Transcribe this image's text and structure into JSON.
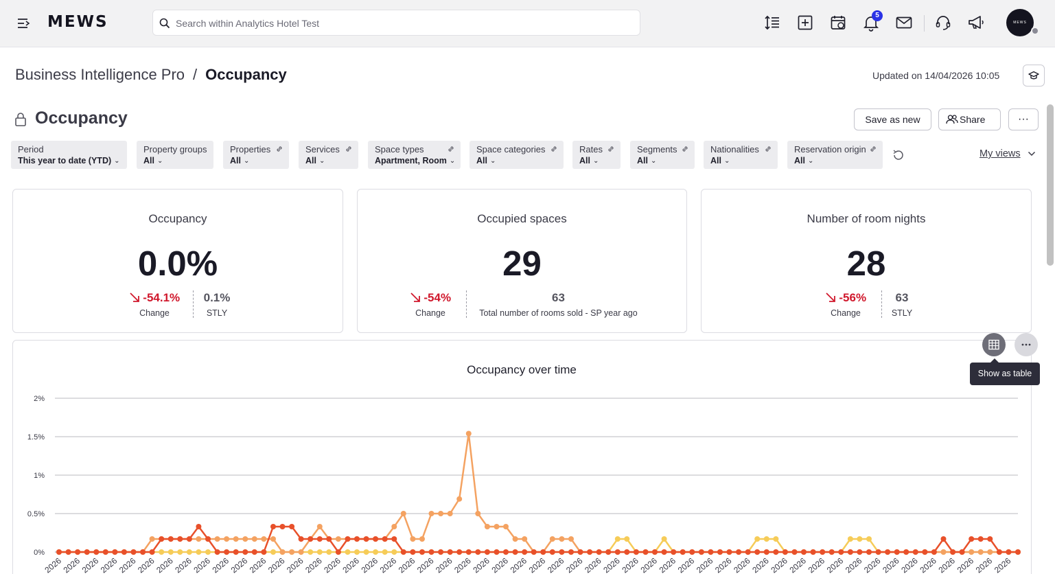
{
  "topbar": {
    "logo": "MEWS",
    "search_placeholder": "Search within Analytics Hotel Test",
    "notification_count": "5",
    "icons": [
      "menu-collapse-icon",
      "search-icon",
      "line-height-icon",
      "add-square-icon",
      "calendar-edit-icon",
      "bell-icon",
      "mail-icon",
      "headset-icon",
      "megaphone-icon"
    ],
    "avatar_text": "MEWS"
  },
  "header": {
    "breadcrumb_parent": "Business Intelligence Pro",
    "breadcrumb_sep": "/",
    "breadcrumb_current": "Occupancy",
    "updated": "Updated on 14/04/2026 10:05"
  },
  "report": {
    "title": "Occupancy",
    "save_label": "Save as new",
    "share_label": "Share",
    "more_label": "···"
  },
  "filters": [
    {
      "label": "Period",
      "value": "This year to date (YTD)",
      "linked": false
    },
    {
      "label": "Property groups",
      "value": "All",
      "linked": false
    },
    {
      "label": "Properties",
      "value": "All",
      "linked": true
    },
    {
      "label": "Services",
      "value": "All",
      "linked": true
    },
    {
      "label": "Space types",
      "value": "Apartment, Room",
      "linked": true
    },
    {
      "label": "Space categories",
      "value": "All",
      "linked": true
    },
    {
      "label": "Rates",
      "value": "All",
      "linked": true
    },
    {
      "label": "Segments",
      "value": "All",
      "linked": true
    },
    {
      "label": "Nationalities",
      "value": "All",
      "linked": true
    },
    {
      "label": "Reservation origin",
      "value": "All",
      "linked": true
    }
  ],
  "my_views": "My views",
  "kpis": [
    {
      "title": "Occupancy",
      "value": "0.0%",
      "change": "-54.1%",
      "change_label": "Change",
      "compare": "0.1%",
      "compare_label": "STLY"
    },
    {
      "title": "Occupied spaces",
      "value": "29",
      "change": "-54%",
      "change_label": "Change",
      "compare": "63",
      "compare_label": "Total number of rooms sold - SP year ago"
    },
    {
      "title": "Number of room nights",
      "value": "28",
      "change": "-56%",
      "change_label": "Change",
      "compare": "63",
      "compare_label": "STLY"
    }
  ],
  "chart_tooltip": "Show as table",
  "colors": {
    "accent": "#2a33e6",
    "negative": "#d0182c",
    "series_a": "#f4a261",
    "series_b": "#e8502a",
    "series_c": "#f6cc58"
  },
  "chart_data": {
    "type": "line",
    "title": "Occupancy over time",
    "ylim": [
      0,
      2
    ],
    "y_ticks": [
      "0%",
      "0.5%",
      "1%",
      "1.5%",
      "2%"
    ],
    "x_tick_label": "2026",
    "grid": true,
    "series": [
      {
        "values": [
          0,
          0,
          0,
          0,
          0,
          0,
          0,
          0,
          0,
          0,
          0.17,
          0.17,
          0.17,
          0.17,
          0.17,
          0.17,
          0.17,
          0.17,
          0.17,
          0.17,
          0.17,
          0.17,
          0.17,
          0.17,
          0,
          0,
          0,
          0.17,
          0.33,
          0.17,
          0.17,
          0.17,
          0.17,
          0.17,
          0.17,
          0.17,
          0.33,
          0.5,
          0.17,
          0.17,
          0.5,
          0.5,
          0.5,
          0.69,
          1.54,
          0.5,
          0.33,
          0.33,
          0.33,
          0.17,
          0.17,
          0,
          0,
          0.17,
          0.17,
          0.17,
          0,
          0,
          0,
          0,
          0,
          0,
          0,
          0,
          0,
          0,
          0,
          0,
          0,
          0,
          0,
          0,
          0,
          0,
          0,
          0,
          0,
          0,
          0,
          0,
          0,
          0,
          0,
          0,
          0,
          0,
          0,
          0,
          0,
          0,
          0,
          0,
          0,
          0,
          0,
          0,
          0,
          0,
          0,
          0,
          0,
          0,
          0,
          0
        ]
      },
      {
        "values": [
          0,
          0,
          0,
          0,
          0,
          0,
          0,
          0,
          0,
          0,
          0,
          0.17,
          0.17,
          0.17,
          0.17,
          0.33,
          0.17,
          0,
          0,
          0,
          0,
          0,
          0,
          0.33,
          0.33,
          0.33,
          0.17,
          0.17,
          0.17,
          0.17,
          0,
          0.17,
          0.17,
          0.17,
          0.17,
          0.17,
          0.17,
          0,
          0,
          0,
          0,
          0,
          0,
          0,
          0,
          0,
          0,
          0,
          0,
          0,
          0,
          0,
          0,
          0,
          0,
          0,
          0,
          0,
          0,
          0,
          0,
          0,
          0,
          0,
          0,
          0,
          0,
          0,
          0,
          0,
          0,
          0,
          0,
          0,
          0,
          0,
          0,
          0,
          0,
          0,
          0,
          0,
          0,
          0,
          0,
          0,
          0,
          0,
          0,
          0,
          0,
          0,
          0,
          0,
          0,
          0.17,
          0,
          0,
          0.17,
          0.17,
          0.17,
          0,
          0,
          0
        ]
      },
      {
        "values": [
          0,
          0,
          0,
          0,
          0,
          0,
          0,
          0,
          0,
          0,
          0,
          0,
          0,
          0,
          0,
          0,
          0,
          0,
          0,
          0,
          0,
          0,
          0,
          0,
          0,
          0,
          0,
          0,
          0,
          0,
          0,
          0,
          0,
          0,
          0,
          0,
          0,
          0,
          0,
          0,
          0,
          0,
          0,
          0,
          0,
          0,
          0,
          0,
          0,
          0,
          0,
          0,
          0,
          0,
          0,
          0,
          0,
          0,
          0,
          0,
          0.17,
          0.17,
          0,
          0,
          0,
          0.17,
          0,
          0,
          0,
          0,
          0,
          0,
          0,
          0,
          0,
          0.17,
          0.17,
          0.17,
          0,
          0,
          0,
          0,
          0,
          0,
          0,
          0.17,
          0.17,
          0.17,
          0,
          0,
          0,
          0,
          0,
          0,
          0,
          0,
          0,
          0,
          0,
          0,
          0,
          0,
          0,
          0
        ]
      }
    ]
  }
}
